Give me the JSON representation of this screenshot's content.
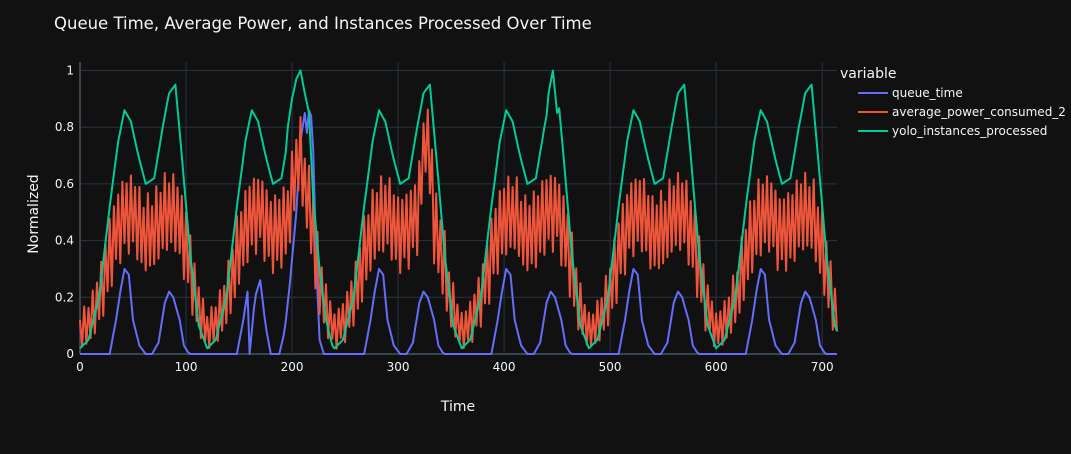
{
  "chart_data": {
    "type": "line",
    "title": "Queue Time, Average Power, and Instances Processed Over Time",
    "xlabel": "Time",
    "ylabel": "Normalized",
    "xlim": [
      0,
      714
    ],
    "ylim": [
      0,
      1.03
    ],
    "x_ticks": [
      0,
      100,
      200,
      300,
      400,
      500,
      600,
      700
    ],
    "y_ticks": [
      0,
      0.2,
      0.4,
      0.6,
      0.8,
      1
    ],
    "y_tick_labels": [
      "0",
      "0.2",
      "0.4",
      "0.6",
      "0.8",
      "1"
    ],
    "grid": true,
    "legend_title": "variable",
    "legend_position": "right",
    "sample_step": 2,
    "series": [
      {
        "name": "queue_time",
        "color": "#636efa",
        "x_start": 0,
        "x_step": 1,
        "day_length": 120,
        "day_profile": [
          [
            0,
            0.0
          ],
          [
            28,
            0.0
          ],
          [
            34,
            0.12
          ],
          [
            38,
            0.22
          ],
          [
            42,
            0.3
          ],
          [
            46,
            0.28
          ],
          [
            50,
            0.12
          ],
          [
            56,
            0.03
          ],
          [
            62,
            0.0
          ],
          [
            68,
            0.0
          ],
          [
            74,
            0.04
          ],
          [
            80,
            0.18
          ],
          [
            84,
            0.22
          ],
          [
            88,
            0.2
          ],
          [
            94,
            0.12
          ],
          [
            98,
            0.03
          ],
          [
            103,
            0.0
          ],
          [
            120,
            0.0
          ]
        ],
        "overrides": [
          [
            160,
            0.0
          ],
          [
            165,
            0.2
          ],
          [
            170,
            0.26
          ],
          [
            175,
            0.1
          ],
          [
            180,
            0.0
          ],
          [
            188,
            0.0
          ],
          [
            193,
            0.08
          ],
          [
            198,
            0.25
          ],
          [
            204,
            0.5
          ],
          [
            208,
            0.75
          ],
          [
            212,
            0.85
          ],
          [
            214,
            0.78
          ],
          [
            217,
            0.9
          ],
          [
            220,
            0.72
          ],
          [
            223,
            0.3
          ],
          [
            226,
            0.05
          ],
          [
            230,
            0.0
          ]
        ]
      },
      {
        "name": "average_power_consumed_2",
        "color": "#ef553b",
        "x_start": 0,
        "x_step": 1,
        "day_length": 120,
        "oscillation_period": 2,
        "oscillation_amplitude": 0.14,
        "day_profile": [
          [
            0,
            0.08
          ],
          [
            10,
            0.12
          ],
          [
            20,
            0.22
          ],
          [
            30,
            0.38
          ],
          [
            40,
            0.48
          ],
          [
            50,
            0.5
          ],
          [
            60,
            0.42
          ],
          [
            70,
            0.44
          ],
          [
            80,
            0.5
          ],
          [
            90,
            0.5
          ],
          [
            100,
            0.38
          ],
          [
            110,
            0.18
          ],
          [
            120,
            0.08
          ]
        ],
        "overrides": [
          [
            197,
            0.5
          ],
          [
            203,
            0.65
          ],
          [
            207,
            0.72
          ],
          [
            212,
            0.6
          ],
          [
            220,
            0.45
          ],
          [
            320,
            0.55
          ],
          [
            326,
            0.78
          ],
          [
            332,
            0.62
          ]
        ]
      },
      {
        "name": "yolo_instances_processed",
        "color": "#00cc96",
        "x_start": 0,
        "x_step": 1,
        "day_length": 120,
        "day_profile": [
          [
            0,
            0.02
          ],
          [
            8,
            0.05
          ],
          [
            18,
            0.2
          ],
          [
            28,
            0.52
          ],
          [
            36,
            0.75
          ],
          [
            42,
            0.86
          ],
          [
            48,
            0.82
          ],
          [
            55,
            0.7
          ],
          [
            62,
            0.6
          ],
          [
            70,
            0.62
          ],
          [
            78,
            0.8
          ],
          [
            84,
            0.92
          ],
          [
            90,
            0.95
          ],
          [
            96,
            0.7
          ],
          [
            104,
            0.35
          ],
          [
            112,
            0.1
          ],
          [
            120,
            0.02
          ]
        ],
        "overrides": [
          [
            196,
            0.8
          ],
          [
            200,
            0.9
          ],
          [
            204,
            0.97
          ],
          [
            208,
            1.0
          ],
          [
            212,
            0.92
          ],
          [
            216,
            0.85
          ],
          [
            220,
            0.55
          ],
          [
            226,
            0.3
          ],
          [
            232,
            0.12
          ],
          [
            238,
            0.03
          ],
          [
            442,
            0.92
          ],
          [
            446,
            1.0
          ],
          [
            450,
            0.85
          ]
        ]
      }
    ]
  }
}
